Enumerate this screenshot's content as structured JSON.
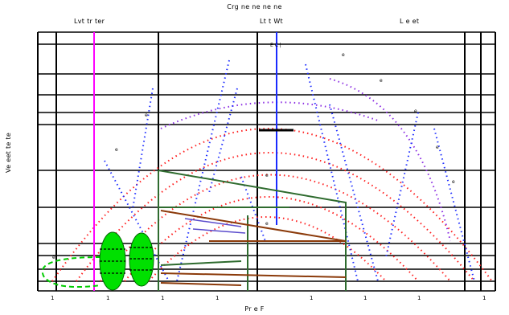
{
  "header": {
    "title": "Crg ne ne ne ne",
    "label_left": "Lvt tr ter",
    "label_mid": "Lt t Wt",
    "label_right": "L e et"
  },
  "axes": {
    "ylabel": "Ve eet te te",
    "xlabel": "Pr e F"
  },
  "xticks": [
    "1",
    "1",
    "1",
    "1",
    "1",
    "1",
    "1",
    "1"
  ],
  "annotations": {
    "top": "E C |",
    "near_top": "e",
    "right_1": "e",
    "right_2": "e",
    "right_3": "e",
    "right_4": "e",
    "mid": "e",
    "center_1": "e",
    "center_2": "e",
    "left_1": "e",
    "left_2": "e"
  },
  "colors": {
    "grid": "#000000",
    "red_dots": "#ff2020",
    "blue_dots": "#2030ff",
    "purple_dots": "#8a2be2",
    "magenta_line": "#ff00ff",
    "blue_line": "#1a2bff",
    "green_fill": "#00e000",
    "dark_green": "#2e6b2e",
    "brown": "#8b3a0a"
  }
}
